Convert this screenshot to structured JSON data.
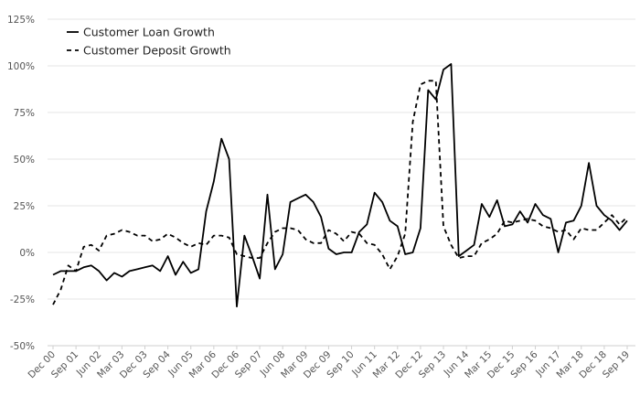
{
  "chart_data": {
    "type": "line",
    "title": "",
    "xlabel": "",
    "ylabel": "",
    "ylim": [
      -50,
      125
    ],
    "yticks": [
      -50,
      -25,
      0,
      25,
      50,
      75,
      100,
      125
    ],
    "ytick_labels": [
      "-50%",
      "-25%",
      "0%",
      "25%",
      "50%",
      "75%",
      "100%",
      "125%"
    ],
    "grid": true,
    "legend_position": "top-left",
    "x": [
      "Dec 00",
      "Mar 01",
      "Jun 01",
      "Sep 01",
      "Dec 01",
      "Mar 02",
      "Jun 02",
      "Sep 02",
      "Dec 02",
      "Mar 03",
      "Jun 03",
      "Sep 03",
      "Dec 03",
      "Mar 04",
      "Jun 04",
      "Sep 04",
      "Dec 04",
      "Mar 05",
      "Jun 05",
      "Sep 05",
      "Dec 05",
      "Mar 06",
      "Jun 06",
      "Sep 06",
      "Dec 06",
      "Mar 07",
      "Jun 07",
      "Sep 07",
      "Dec 07",
      "Mar 08",
      "Jun 08",
      "Sep 08",
      "Dec 08",
      "Mar 09",
      "Jun 09",
      "Sep 09",
      "Dec 09",
      "Mar 10",
      "Jun 10",
      "Sep 10",
      "Dec 10",
      "Mar 11",
      "Jun 11",
      "Sep 11",
      "Dec 11",
      "Mar 12",
      "Jun 12",
      "Sep 12",
      "Dec 12",
      "Mar 13",
      "Jun 13",
      "Sep 13",
      "Dec 13",
      "Mar 14",
      "Jun 14",
      "Sep 14",
      "Dec 14",
      "Mar 15",
      "Jun 15",
      "Sep 15",
      "Dec 15",
      "Mar 16",
      "Jun 16",
      "Sep 16",
      "Dec 16",
      "Mar 17",
      "Jun 17",
      "Sep 17",
      "Dec 17",
      "Mar 18",
      "Jun 18",
      "Sep 18",
      "Dec 18",
      "Mar 19",
      "Jun 19",
      "Sep 19"
    ],
    "xtick_labels": [
      "Dec 00",
      "Sep 01",
      "Jun 02",
      "Mar 03",
      "Dec 03",
      "Sep 04",
      "Jun 05",
      "Mar 06",
      "Dec 06",
      "Sep 07",
      "Jun 08",
      "Mar 09",
      "Dec 09",
      "Sep 10",
      "Jun 11",
      "Mar 12",
      "Dec 12",
      "Sep 13",
      "Jun 14",
      "Mar 15",
      "Dec 15",
      "Sep 16",
      "Jun 17",
      "Mar 18",
      "Dec 18",
      "Sep 19"
    ],
    "series": [
      {
        "name": "Customer Loan Growth",
        "color": "#000000",
        "dash": "solid",
        "values": [
          -12,
          -10,
          -10,
          -10,
          -8,
          -7,
          -10,
          -15,
          -11,
          -13,
          -10,
          -9,
          -8,
          -7,
          -10,
          -2,
          -12,
          -5,
          -11,
          -9,
          22,
          38,
          61,
          50,
          -29,
          9,
          -2,
          -14,
          31,
          -9,
          -1,
          27,
          29,
          31,
          27,
          19,
          2,
          -1,
          0,
          0,
          11,
          15,
          32,
          27,
          17,
          14,
          -1,
          0,
          13,
          87,
          82,
          98,
          101,
          -2,
          1,
          4,
          26,
          19,
          28,
          14,
          15,
          22,
          16,
          26,
          20,
          18,
          0,
          16,
          17,
          25,
          48,
          25,
          20,
          17,
          12,
          17
        ]
      },
      {
        "name": "Customer Deposit Growth",
        "color": "#000000",
        "dash": "dashed",
        "values": [
          -28,
          -20,
          -7,
          -10,
          3,
          4,
          1,
          9,
          10,
          12,
          11,
          9,
          9,
          6,
          7,
          10,
          8,
          5,
          3,
          5,
          4,
          9,
          9,
          8,
          -1,
          -2,
          -3,
          -3,
          5,
          11,
          13,
          13,
          12,
          7,
          5,
          5,
          12,
          10,
          6,
          11,
          10,
          5,
          4,
          -1,
          -9,
          -2,
          10,
          70,
          90,
          92,
          92,
          14,
          4,
          -3,
          -2,
          -2,
          5,
          7,
          10,
          17,
          16,
          17,
          18,
          17,
          14,
          13,
          11,
          12,
          7,
          13,
          12,
          12,
          16,
          20,
          15,
          19
        ]
      }
    ]
  }
}
